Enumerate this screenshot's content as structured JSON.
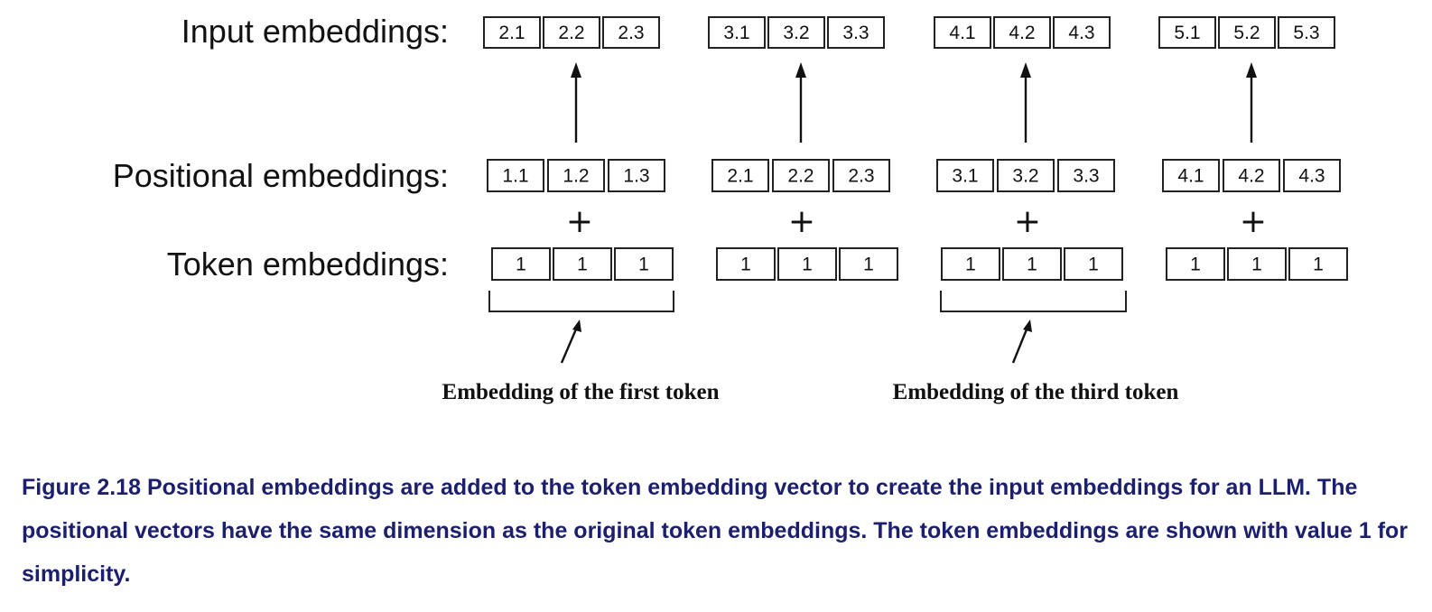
{
  "labels": {
    "input": "Input embeddings:",
    "positional": "Positional embeddings:",
    "token": "Token embeddings:"
  },
  "plus_symbol": "+",
  "input_embeddings": [
    [
      "2.1",
      "2.2",
      "2.3"
    ],
    [
      "3.1",
      "3.2",
      "3.3"
    ],
    [
      "4.1",
      "4.2",
      "4.3"
    ],
    [
      "5.1",
      "5.2",
      "5.3"
    ]
  ],
  "positional_embeddings": [
    [
      "1.1",
      "1.2",
      "1.3"
    ],
    [
      "2.1",
      "2.2",
      "2.3"
    ],
    [
      "3.1",
      "3.2",
      "3.3"
    ],
    [
      "4.1",
      "4.2",
      "4.3"
    ]
  ],
  "token_embeddings": [
    [
      "1",
      "1",
      "1"
    ],
    [
      "1",
      "1",
      "1"
    ],
    [
      "1",
      "1",
      "1"
    ],
    [
      "1",
      "1",
      "1"
    ]
  ],
  "callouts": {
    "first": "Embedding of the first token",
    "third": "Embedding of the third token"
  },
  "caption": "Figure 2.18 Positional embeddings are added to the token embedding vector to create the input embeddings for an LLM. The positional vectors have the same dimension as the original token embeddings. The token embeddings are shown with value 1 for simplicity.",
  "colors": {
    "caption": "#1b1f6e",
    "stroke": "#222222"
  }
}
